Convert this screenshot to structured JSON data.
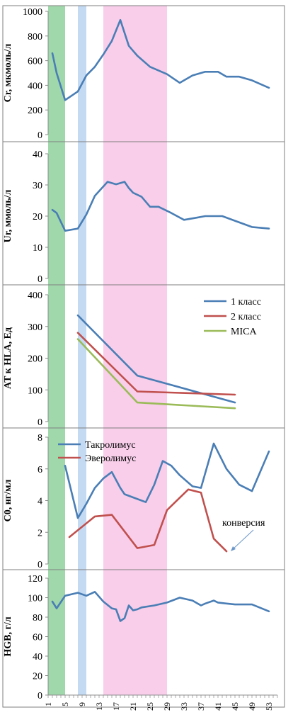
{
  "colors": {
    "band_green": "#8fd19e",
    "band_blue": "#b9d3f0",
    "band_pink": "#f7c6e6",
    "blue": "#4a7eb5",
    "red": "#c0504d",
    "green": "#9bbb59",
    "axis": "#8c8c8c",
    "frame": "#7f7f7f"
  },
  "x_axis": {
    "min": 1,
    "max": 55,
    "tick_labels": [
      "1",
      "5",
      "9",
      "13",
      "17",
      "21",
      "25",
      "29",
      "33",
      "37",
      "41",
      "45",
      "49",
      "53"
    ],
    "bands": [
      {
        "from": 1,
        "to": 5,
        "color_key": "band_green"
      },
      {
        "from": 8,
        "to": 10,
        "color_key": "band_blue"
      },
      {
        "from": 14,
        "to": 29,
        "color_key": "band_pink"
      }
    ]
  },
  "chart_data": [
    {
      "type": "line",
      "ylabel": "Cr, мкмоль/л",
      "ylim": [
        0,
        1000
      ],
      "yticks": [
        "0",
        "200",
        "400",
        "600",
        "800",
        "1000"
      ],
      "series": [
        {
          "color_key": "blue",
          "x": [
            2,
            3,
            5,
            8,
            10,
            12,
            14,
            16,
            18,
            20,
            21,
            22,
            25,
            29,
            32,
            35,
            38,
            41,
            43,
            46,
            49,
            53
          ],
          "values": [
            660,
            500,
            280,
            350,
            480,
            550,
            650,
            760,
            930,
            720,
            680,
            640,
            550,
            490,
            420,
            480,
            510,
            510,
            470,
            470,
            440,
            380
          ]
        }
      ]
    },
    {
      "type": "line",
      "ylabel": "Ur, ммоль/л",
      "ylim": [
        0,
        40
      ],
      "yticks": [
        "0",
        "10",
        "20",
        "30",
        "40"
      ],
      "series": [
        {
          "color_key": "blue",
          "x": [
            2,
            3,
            5,
            8,
            10,
            12,
            15,
            17,
            19,
            20,
            21,
            23,
            25,
            27,
            30,
            33,
            36,
            38,
            42,
            45,
            49,
            53
          ],
          "values": [
            22,
            21,
            15.3,
            16,
            20.5,
            26.5,
            31,
            30.2,
            31,
            29,
            27.5,
            26.2,
            23,
            23,
            21,
            18.8,
            19.5,
            20,
            20,
            18.5,
            16.5,
            16
          ]
        }
      ]
    },
    {
      "type": "line",
      "ylabel": "AT к HLA, Ед",
      "ylim": [
        0,
        400
      ],
      "yticks": [
        "0",
        "100",
        "200",
        "300",
        "400"
      ],
      "legend": [
        "1 класс",
        "2 класс",
        "MICA"
      ],
      "series": [
        {
          "name": "1 класс",
          "color_key": "blue",
          "x": [
            8,
            22,
            45
          ],
          "values": [
            335,
            145,
            60
          ]
        },
        {
          "name": "2 класс",
          "color_key": "red",
          "x": [
            8,
            22,
            45
          ],
          "values": [
            280,
            95,
            85
          ]
        },
        {
          "name": "MICA",
          "color_key": "green",
          "x": [
            8,
            22,
            45
          ],
          "values": [
            260,
            60,
            42
          ]
        }
      ]
    },
    {
      "type": "line",
      "ylabel": "C0, нг/мл",
      "ylim": [
        0,
        8
      ],
      "yticks": [
        "0",
        "2",
        "4",
        "6",
        "8"
      ],
      "legend": [
        "Такролимус",
        "Эверолимус"
      ],
      "annotation": "конверсия",
      "series": [
        {
          "name": "Такролимус",
          "color_key": "blue",
          "x": [
            5,
            8,
            10,
            12,
            14,
            16,
            18,
            19,
            21,
            24,
            26,
            28,
            30,
            32,
            35,
            37,
            40,
            43,
            46,
            49,
            53
          ],
          "values": [
            6.2,
            2.9,
            3.8,
            4.8,
            5.4,
            5.8,
            4.8,
            4.4,
            4.2,
            3.9,
            5.0,
            6.5,
            6.2,
            5.6,
            4.9,
            4.8,
            7.6,
            6.0,
            5.0,
            4.6,
            7.1
          ]
        },
        {
          "name": "Эверолимус",
          "color_key": "red",
          "x": [
            6,
            12,
            16,
            22,
            26,
            29,
            34,
            37,
            40,
            43
          ],
          "values": [
            1.7,
            3.0,
            3.1,
            1.0,
            1.2,
            3.4,
            4.7,
            4.5,
            1.6,
            0.8
          ]
        }
      ]
    },
    {
      "type": "line",
      "ylabel": "HGB, г/л",
      "ylim": [
        0,
        120
      ],
      "yticks": [
        "0",
        "20",
        "40",
        "60",
        "80",
        "100",
        "120"
      ],
      "series": [
        {
          "color_key": "blue",
          "x": [
            2,
            3,
            5,
            8,
            10,
            12,
            14,
            16,
            17,
            18,
            19,
            20,
            21,
            22,
            23,
            26,
            29,
            32,
            35,
            37,
            38,
            40,
            41,
            43,
            45,
            49,
            53
          ],
          "values": [
            96,
            89,
            102,
            105,
            102,
            106,
            96,
            89,
            88,
            76,
            79,
            92,
            87,
            88,
            90,
            92,
            95,
            100,
            97,
            92,
            94,
            97,
            95,
            94,
            93,
            93,
            86
          ]
        }
      ]
    }
  ]
}
